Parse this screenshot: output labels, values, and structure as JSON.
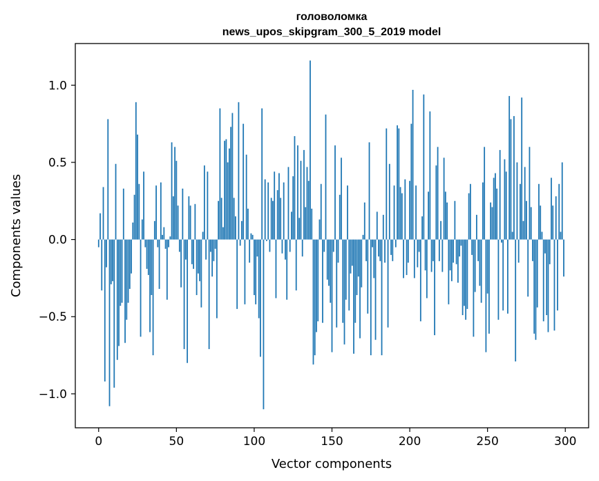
{
  "chart_data": {
    "type": "bar",
    "title": "головоломка",
    "subtitle": "news_upos_skipgram_300_5_2019 model",
    "xlabel": "Vector components",
    "ylabel": "Components values",
    "xlim": [
      -15,
      315
    ],
    "ylim": [
      -1.22,
      1.27
    ],
    "xticks": [
      0,
      50,
      100,
      150,
      200,
      250,
      300
    ],
    "xtick_labels": [
      "0",
      "50",
      "100",
      "150",
      "200",
      "250",
      "300"
    ],
    "yticks": [
      -1.0,
      -0.5,
      0.0,
      0.5,
      1.0
    ],
    "ytick_labels": [
      "−1.0",
      "−0.5",
      "0.0",
      "0.5",
      "1.0"
    ],
    "grid": false,
    "bar_color": "#1f77b4",
    "values": [
      -0.05,
      0.17,
      -0.33,
      0.34,
      -0.92,
      -0.18,
      0.78,
      -1.08,
      -0.29,
      -0.27,
      -0.96,
      0.49,
      -0.78,
      -0.69,
      -0.43,
      -0.41,
      0.33,
      -0.67,
      -0.52,
      -0.41,
      -0.32,
      -0.22,
      0.11,
      0.29,
      0.89,
      0.68,
      0.36,
      -0.63,
      0.13,
      0.44,
      -0.05,
      -0.19,
      -0.23,
      -0.6,
      -0.36,
      -0.75,
      0.12,
      0.35,
      -0.05,
      -0.32,
      0.37,
      0.03,
      0.08,
      -0.06,
      -0.39,
      -0.05,
      0.02,
      0.63,
      0.28,
      0.6,
      0.51,
      0.22,
      -0.08,
      -0.31,
      0.33,
      -0.71,
      -0.13,
      -0.8,
      0.28,
      0.22,
      -0.16,
      -0.19,
      0.23,
      -0.36,
      -0.22,
      -0.27,
      -0.44,
      0.05,
      0.48,
      -0.13,
      0.44,
      -0.71,
      -0.08,
      -0.24,
      -0.14,
      -0.06,
      -0.51,
      0.25,
      0.85,
      0.27,
      0.08,
      0.64,
      0.65,
      0.5,
      0.59,
      0.73,
      0.82,
      0.27,
      0.15,
      -0.45,
      0.89,
      -0.04,
      0.12,
      0.75,
      -0.42,
      0.55,
      0.2,
      -0.15,
      0.04,
      0.03,
      -0.36,
      -0.42,
      -0.11,
      -0.51,
      -0.76,
      0.85,
      -1.1,
      0.39,
      -0.01,
      0.37,
      -0.08,
      0.27,
      0.25,
      0.44,
      -0.38,
      0.32,
      0.43,
      0.27,
      -0.09,
      0.37,
      -0.13,
      -0.39,
      0.47,
      -0.08,
      0.18,
      0.41,
      0.67,
      -0.33,
      0.61,
      0.14,
      0.51,
      -0.11,
      0.58,
      0.21,
      0.47,
      0.38,
      1.16,
      0.2,
      -0.81,
      -0.75,
      -0.6,
      -0.53,
      0.13,
      0.36,
      -0.54,
      -0.08,
      0.81,
      -0.26,
      -0.3,
      -0.41,
      -0.73,
      -0.08,
      0.61,
      -0.57,
      -0.15,
      0.29,
      0.53,
      -0.54,
      -0.68,
      -0.39,
      0.35,
      -0.46,
      -0.22,
      -0.17,
      -0.74,
      -0.54,
      -0.36,
      -0.24,
      -0.64,
      -0.31,
      0.03,
      0.24,
      -0.14,
      -0.48,
      0.63,
      -0.75,
      -0.05,
      -0.25,
      -0.65,
      0.18,
      -0.11,
      -0.14,
      -0.75,
      0.16,
      -0.15,
      0.72,
      -0.57,
      0.49,
      -0.1,
      -0.14,
      0.35,
      -0.05,
      0.74,
      0.72,
      0.34,
      0.3,
      -0.25,
      0.39,
      -0.23,
      -0.15,
      0.38,
      0.75,
      0.97,
      -0.25,
      0.35,
      -0.18,
      -0.08,
      -0.53,
      0.15,
      0.94,
      -0.2,
      -0.38,
      0.31,
      0.83,
      -0.21,
      -0.14,
      -0.62,
      0.48,
      0.6,
      -0.14,
      0.12,
      -0.21,
      0.53,
      0.31,
      0.24,
      -0.42,
      -0.2,
      -0.27,
      -0.15,
      0.25,
      -0.16,
      -0.28,
      -0.11,
      -0.04,
      -0.49,
      -0.43,
      -0.52,
      -0.45,
      0.3,
      0.36,
      -0.1,
      -0.63,
      -0.34,
      0.16,
      -0.14,
      -0.3,
      -0.41,
      0.37,
      0.6,
      -0.73,
      -0.35,
      -0.61,
      0.24,
      0.21,
      0.4,
      0.43,
      0.33,
      -0.52,
      0.58,
      -0.02,
      -0.46,
      0.52,
      0.44,
      -0.48,
      0.93,
      0.78,
      0.05,
      0.8,
      -0.79,
      0.5,
      -0.15,
      0.36,
      0.92,
      0.12,
      0.47,
      0.25,
      -0.37,
      0.6,
      0.21,
      -0.14,
      -0.61,
      -0.65,
      -0.44,
      0.36,
      0.22,
      0.05,
      -0.53,
      -0.09,
      -0.49,
      -0.6,
      -0.16,
      0.4,
      0.22,
      -0.59,
      0.28,
      -0.46,
      0.36,
      0.05,
      0.5,
      -0.24
    ]
  }
}
